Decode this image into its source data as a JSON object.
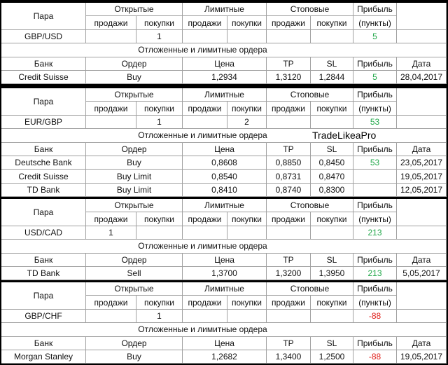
{
  "blocks": [
    {
      "header": {
        "pair": "Пара",
        "open": "Открытые",
        "limit": "Лимитные",
        "stop": "Стоповые",
        "profit": "Прибыль",
        "sub": [
          "продажи",
          "покупки",
          "продажи",
          "покупки",
          "продажи",
          "покупки"
        ],
        "unit": "(пункты)"
      },
      "pair": "GBP/USD",
      "positions": {
        "open_buy": 1
      },
      "profit": 5,
      "orders_title": "Отложенные и лимитные ордера",
      "orders_header": {
        "bank": "Банк",
        "order": "Ордер",
        "price": "Цена",
        "tp": "TP",
        "sl": "SL",
        "profit": "Прибыль",
        "date": "Дата"
      },
      "orders": [
        {
          "bank": "Credit Suisse",
          "order": "Buy",
          "price": "1,2934",
          "tp": "1,3120",
          "sl": "1,2844",
          "profit": 5,
          "date": "28,04,2017"
        }
      ]
    },
    {
      "header": {
        "pair": "Пара",
        "open": "Открытые",
        "limit": "Лимитные",
        "stop": "Стоповые",
        "profit": "Прибыль",
        "sub": [
          "продажи",
          "покупки",
          "продажи",
          "покупки",
          "продажи",
          "покупки"
        ],
        "unit": "(пункты)"
      },
      "pair": "EUR/GBP",
      "positions": {
        "open_buy": 1,
        "limit_buy": 2
      },
      "profit": 53,
      "orders_title": "Отложенные и лимитные ордера",
      "watermark": "TradeLikeaPro",
      "orders_header": {
        "bank": "Банк",
        "order": "Ордер",
        "price": "Цена",
        "tp": "TP",
        "sl": "SL",
        "profit": "Прибыль",
        "date": "Дата"
      },
      "orders": [
        {
          "bank": "Deutsche Bank",
          "order": "Buy",
          "price": "0,8608",
          "tp": "0,8850",
          "sl": "0,8450",
          "profit": 53,
          "date": "23,05,2017"
        },
        {
          "bank": "Credit Suisse",
          "order": "Buy Limit",
          "price": "0,8540",
          "tp": "0,8731",
          "sl": "0,8470",
          "date": "19,05,2017"
        },
        {
          "bank": "TD Bank",
          "order": "Buy Limit",
          "price": "0,8410",
          "tp": "0,8740",
          "sl": "0,8300",
          "date": "12,05,2017"
        }
      ]
    },
    {
      "header": {
        "pair": "Пара",
        "open": "Открытые",
        "limit": "Лимитные",
        "stop": "Стоповые",
        "profit": "Прибыль",
        "sub": [
          "продажи",
          "покупки",
          "продажи",
          "покупки",
          "продажи",
          "покупки"
        ],
        "unit": "(пункты)"
      },
      "pair": "USD/CAD",
      "positions": {
        "open_sell": 1
      },
      "profit": 213,
      "orders_title": "Отложенные и лимитные ордера",
      "orders_header": {
        "bank": "Банк",
        "order": "Ордер",
        "price": "Цена",
        "tp": "TP",
        "sl": "SL",
        "profit": "Прибыль",
        "date": "Дата"
      },
      "orders": [
        {
          "bank": "TD Bank",
          "order": "Sell",
          "price": "1,3700",
          "tp": "1,3200",
          "sl": "1,3950",
          "profit": 213,
          "date": "5,05,2017"
        }
      ]
    },
    {
      "header": {
        "pair": "Пара",
        "open": "Открытые",
        "limit": "Лимитные",
        "stop": "Стоповые",
        "profit": "Прибыль",
        "sub": [
          "продажи",
          "покупки",
          "продажи",
          "покупки",
          "продажи",
          "покупки"
        ],
        "unit": "(пункты)"
      },
      "pair": "GBP/CHF",
      "positions": {
        "open_buy": 1
      },
      "profit": -88,
      "orders_title": "Отложенные и лимитные ордера",
      "orders_header": {
        "bank": "Банк",
        "order": "Ордер",
        "price": "Цена",
        "tp": "TP",
        "sl": "SL",
        "profit": "Прибыль",
        "date": "Дата"
      },
      "orders": [
        {
          "bank": "Morgan Stanley",
          "order": "Buy",
          "price": "1,2682",
          "tp": "1,3400",
          "sl": "1,2500",
          "profit": -88,
          "date": "19,05,2017"
        }
      ]
    }
  ]
}
